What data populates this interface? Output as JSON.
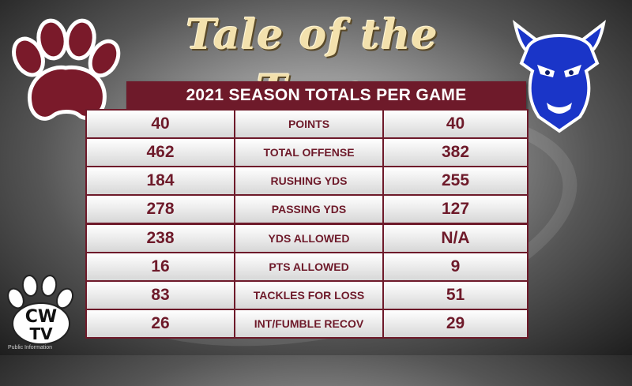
{
  "title": "Tale of the Tape",
  "subtitle": "2021 SEASON TOTALS PER GAME",
  "footnote": "Public Information",
  "logos": {
    "left": "clemson-paw-logo",
    "right": "blue-devil-logo",
    "corner": "CWTV",
    "corner_text": [
      "CW",
      "TV"
    ]
  },
  "colors": {
    "maroon": "#6e1a2a",
    "gold": "#f3e1ad",
    "blue": "#1a35c8"
  },
  "rows": [
    {
      "left": "40",
      "stat": "POINTS",
      "right": "40"
    },
    {
      "left": "462",
      "stat": "TOTAL OFFENSE",
      "right": "382"
    },
    {
      "left": "184",
      "stat": "RUSHING YDS",
      "right": "255"
    },
    {
      "left": "278",
      "stat": "PASSING YDS",
      "right": "127"
    },
    {
      "left": "238",
      "stat": "YDS ALLOWED",
      "right": "N/A"
    },
    {
      "left": "16",
      "stat": "PTS ALLOWED",
      "right": "9"
    },
    {
      "left": "83",
      "stat": "TACKLES FOR LOSS",
      "right": "51"
    },
    {
      "left": "26",
      "stat": "INT/FUMBLE RECOV",
      "right": "29"
    }
  ]
}
